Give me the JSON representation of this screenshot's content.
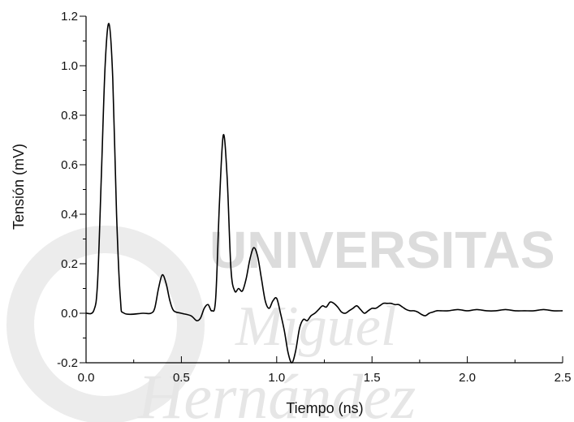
{
  "watermark": {
    "line1": "UNIVERSITAS",
    "line2": "Miguel",
    "line3": "Hernández"
  },
  "chart_data": {
    "type": "line",
    "title": "",
    "xlabel": "Tiempo (ns)",
    "ylabel": "Tensión (mV)",
    "xlim": [
      0,
      2.5
    ],
    "ylim": [
      -0.2,
      1.2
    ],
    "x_ticks": [
      0.0,
      0.5,
      1.0,
      1.5,
      2.0,
      2.5
    ],
    "x_tick_labels": [
      "0.0",
      "0.5",
      "1.0",
      "1.5",
      "2.0",
      "2.5"
    ],
    "y_ticks": [
      -0.2,
      0.0,
      0.2,
      0.4,
      0.6,
      0.8,
      1.0,
      1.2
    ],
    "y_tick_labels": [
      "-0.2",
      "0.0",
      "0.2",
      "0.4",
      "0.6",
      "0.8",
      "1.0",
      "1.2"
    ],
    "grid": false,
    "legend": "none",
    "line_color": "#000000",
    "series": [
      {
        "x": [
          0.0,
          0.04,
          0.06,
          0.08,
          0.1,
          0.12,
          0.14,
          0.16,
          0.18,
          0.2,
          0.3,
          0.34,
          0.36,
          0.38,
          0.4,
          0.42,
          0.44,
          0.46,
          0.5,
          0.55,
          0.58,
          0.6,
          0.62,
          0.64,
          0.66,
          0.68,
          0.7,
          0.72,
          0.74,
          0.76,
          0.78,
          0.8,
          0.82,
          0.84,
          0.86,
          0.88,
          0.9,
          0.92,
          0.94,
          0.96,
          0.98,
          1.0,
          1.02,
          1.04,
          1.06,
          1.08,
          1.1,
          1.12,
          1.14,
          1.16,
          1.18,
          1.2,
          1.22,
          1.24,
          1.26,
          1.28,
          1.3,
          1.32,
          1.34,
          1.36,
          1.38,
          1.4,
          1.42,
          1.44,
          1.46,
          1.48,
          1.5,
          1.52,
          1.54,
          1.56,
          1.58,
          1.6,
          1.62,
          1.64,
          1.66,
          1.68,
          1.7,
          1.72,
          1.74,
          1.76,
          1.78,
          1.8,
          1.82,
          1.84,
          1.86,
          1.9,
          1.95,
          2.0,
          2.05,
          2.1,
          2.15,
          2.2,
          2.25,
          2.3,
          2.35,
          2.4,
          2.45,
          2.5
        ],
        "y": [
          0.0,
          0.01,
          0.12,
          0.55,
          1.0,
          1.17,
          0.95,
          0.4,
          0.06,
          0.0,
          0.0,
          0.0,
          0.02,
          0.1,
          0.155,
          0.12,
          0.05,
          0.01,
          0.0,
          -0.01,
          -0.03,
          -0.02,
          0.02,
          0.035,
          0.01,
          0.06,
          0.45,
          0.72,
          0.55,
          0.18,
          0.09,
          0.1,
          0.09,
          0.14,
          0.22,
          0.265,
          0.23,
          0.14,
          0.05,
          0.02,
          0.05,
          0.06,
          0.0,
          -0.07,
          -0.16,
          -0.2,
          -0.15,
          -0.06,
          -0.025,
          -0.03,
          -0.01,
          0.0,
          0.015,
          0.03,
          0.025,
          0.045,
          0.04,
          0.025,
          0.005,
          0.0,
          0.01,
          0.02,
          0.03,
          0.015,
          0.0,
          0.01,
          0.02,
          0.02,
          0.03,
          0.04,
          0.04,
          0.04,
          0.035,
          0.035,
          0.025,
          0.015,
          0.01,
          0.01,
          0.005,
          -0.005,
          -0.01,
          0.0,
          0.005,
          0.01,
          0.01,
          0.01,
          0.015,
          0.01,
          0.015,
          0.01,
          0.01,
          0.015,
          0.01,
          0.01,
          0.01,
          0.015,
          0.01,
          0.01
        ]
      }
    ]
  }
}
